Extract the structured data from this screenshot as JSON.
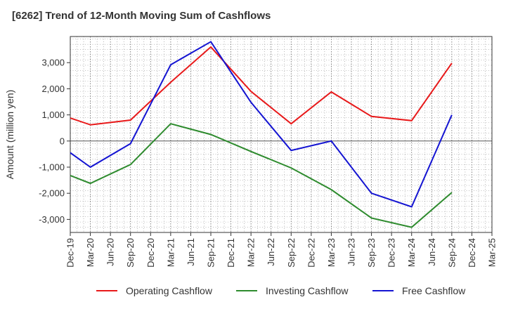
{
  "chart_data": {
    "type": "line",
    "title": "[6262]  Trend of 12-Month Moving Sum of Cashflows",
    "xlabel": "",
    "ylabel": "Amount (million yen)",
    "categories": [
      "Dec-19",
      "Mar-20",
      "Jun-20",
      "Sep-20",
      "Dec-20",
      "Mar-21",
      "Jun-21",
      "Sep-21",
      "Dec-21",
      "Mar-22",
      "Jun-22",
      "Sep-22",
      "Dec-22",
      "Mar-23",
      "Jun-23",
      "Sep-23",
      "Dec-23",
      "Mar-24",
      "Jun-24",
      "Sep-24",
      "Dec-24",
      "Mar-25"
    ],
    "ylim": [
      -3500,
      4000
    ],
    "yticks": [
      3000,
      2000,
      1000,
      0,
      -1000,
      -2000,
      -3000
    ],
    "ytick_labels": [
      "3,000",
      "2,000",
      "1,000",
      "0",
      "-1,000",
      "-2,000",
      "-3,000"
    ],
    "grid": true,
    "legend_position": "bottom",
    "series": [
      {
        "name": "Operating Cashflow",
        "color": "#e8191a",
        "points": [
          {
            "x": "Dec-19",
            "y": 880
          },
          {
            "x": "Mar-20",
            "y": 620
          },
          {
            "x": "Sep-20",
            "y": 800
          },
          {
            "x": "Mar-21",
            "y": 2250
          },
          {
            "x": "Sep-21",
            "y": 3600
          },
          {
            "x": "Mar-22",
            "y": 1900
          },
          {
            "x": "Sep-22",
            "y": 660
          },
          {
            "x": "Mar-23",
            "y": 1880
          },
          {
            "x": "Sep-23",
            "y": 940
          },
          {
            "x": "Mar-24",
            "y": 780
          },
          {
            "x": "Sep-24",
            "y": 2980
          }
        ]
      },
      {
        "name": "Investing Cashflow",
        "color": "#2e8b2e",
        "points": [
          {
            "x": "Dec-19",
            "y": -1320
          },
          {
            "x": "Mar-20",
            "y": -1620
          },
          {
            "x": "Sep-20",
            "y": -900
          },
          {
            "x": "Mar-21",
            "y": 660
          },
          {
            "x": "Sep-21",
            "y": 250
          },
          {
            "x": "Mar-22",
            "y": -400
          },
          {
            "x": "Sep-22",
            "y": -1030
          },
          {
            "x": "Mar-23",
            "y": -1860
          },
          {
            "x": "Sep-23",
            "y": -2950
          },
          {
            "x": "Mar-24",
            "y": -3300
          },
          {
            "x": "Sep-24",
            "y": -1970
          }
        ]
      },
      {
        "name": "Free Cashflow",
        "color": "#1414d2",
        "points": [
          {
            "x": "Dec-19",
            "y": -450
          },
          {
            "x": "Mar-20",
            "y": -1000
          },
          {
            "x": "Sep-20",
            "y": -100
          },
          {
            "x": "Mar-21",
            "y": 2920
          },
          {
            "x": "Sep-21",
            "y": 3800
          },
          {
            "x": "Mar-22",
            "y": 1480
          },
          {
            "x": "Sep-22",
            "y": -360
          },
          {
            "x": "Mar-23",
            "y": 0
          },
          {
            "x": "Sep-23",
            "y": -2000
          },
          {
            "x": "Mar-24",
            "y": -2520
          },
          {
            "x": "Sep-24",
            "y": 1000
          }
        ]
      }
    ]
  }
}
